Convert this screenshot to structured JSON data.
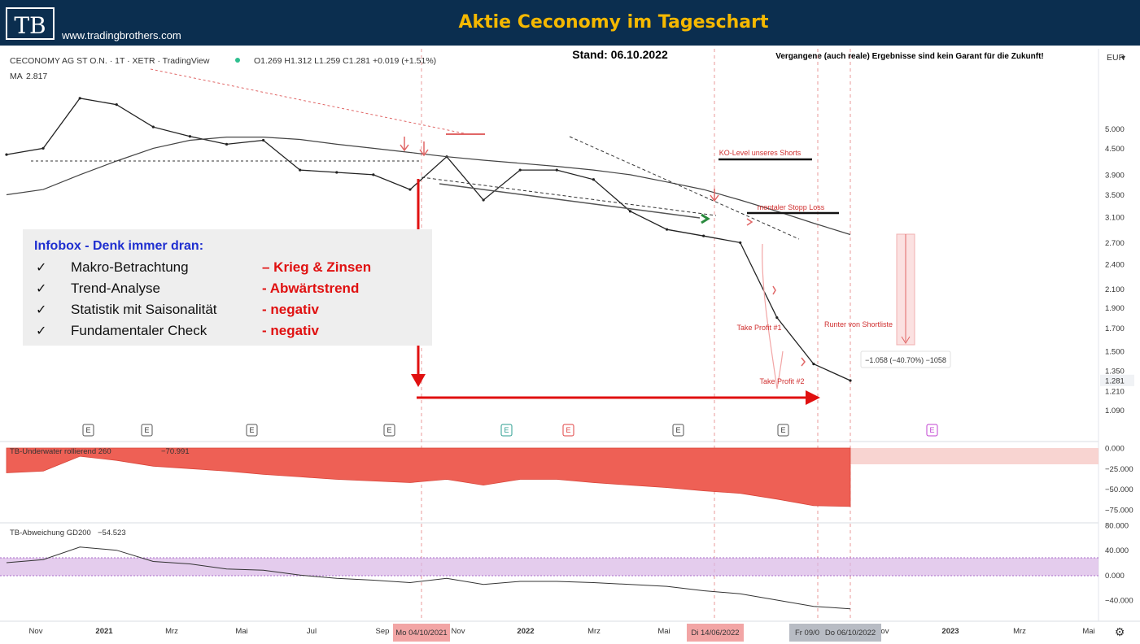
{
  "header": {
    "logo_text": "TB",
    "website": "www.tradingbrothers.com",
    "title": "Aktie Ceconomy im Tageschart",
    "header_bg": "#0b2e4f",
    "title_color": "#f5b800"
  },
  "chart_info": {
    "symbol_line": "CECONOMY AG ST O.N. · 1T · XETR · TradingView",
    "ohlc": "O1.269  H1.312  L1.259  C1.281  +0.019 (+1.51%)",
    "ma_label": "MA",
    "ma_value": "2.817",
    "date_label": "Stand: 06.10.2022",
    "disclaimer": "Vergangene (auch reale) Ergebnisse sind kein Garant für die Zukunft!",
    "currency": "EUR",
    "currency_chevron": "▾"
  },
  "annotations": {
    "ko_level": "KO-Level unseres Shorts",
    "stop_loss": "mentaler Stopp Loss",
    "take_profit_1": "Take Profit #1",
    "take_profit_2": "Take Profit #2",
    "runter": "Runter von Shortliste",
    "measure": "−1.058 (−40.70%) −1058"
  },
  "infobox": {
    "title": "Infobox -  Denk immer dran:",
    "check_glyph": "✓",
    "items": [
      {
        "label": "Makro-Betrachtung",
        "value": "– Krieg & Zinsen"
      },
      {
        "label": "Trend-Analyse",
        "value": "- Abwärtstrend"
      },
      {
        "label": "Statistik mit Saisonalität",
        "value": "- negativ"
      },
      {
        "label": "Fundamentaler Check",
        "value": "- negativ"
      }
    ]
  },
  "event_markers": [
    "E",
    "E",
    "E",
    "E",
    "E",
    "E",
    "E",
    "E",
    "E"
  ],
  "indicators": {
    "underwater_label": "TB-Underwater rollierend 260",
    "underwater_value": "−70.991",
    "gd200_label": "TB-Abweichung GD200",
    "gd200_value": "−54.523"
  },
  "time_axis": {
    "labels": [
      "Nov",
      "2021",
      "Mrz",
      "Mai",
      "Jul",
      "Sep",
      "Nov",
      "2022",
      "Mrz",
      "Mai",
      "Nov",
      "2023",
      "Mrz",
      "Mai"
    ],
    "highlight_1": "Mo 04/10/2021",
    "highlight_2": "Di 14/06/2022",
    "highlight_3": "Fr 09/0",
    "highlight_4": "Do 06/10/2022",
    "gear_icon": "⚙"
  },
  "chart_data": [
    {
      "type": "line",
      "ylabel": "EUR",
      "yscale": "log",
      "ylim": [
        1.05,
        6.0
      ],
      "yticks": [
        "5.000",
        "4.500",
        "3.900",
        "3.500",
        "3.100",
        "2.700",
        "2.400",
        "2.100",
        "1.900",
        "1.700",
        "1.500",
        "1.350",
        "1.281",
        "1.210",
        "1.090"
      ],
      "x": [
        "2020-11",
        "2020-12",
        "2021-01",
        "2021-02",
        "2021-03",
        "2021-04",
        "2021-05",
        "2021-06",
        "2021-07",
        "2021-08",
        "2021-09",
        "2021-10",
        "2021-11",
        "2021-12",
        "2022-01",
        "2022-02",
        "2022-03",
        "2022-04",
        "2022-05",
        "2022-06",
        "2022-07",
        "2022-08",
        "2022-09",
        "2022-10"
      ],
      "series": [
        {
          "values": [
            4.35,
            4.5,
            5.9,
            5.7,
            5.05,
            4.8,
            4.6,
            4.7,
            4.0,
            3.95,
            3.9,
            3.6,
            4.3,
            3.4,
            4.0,
            4.0,
            3.8,
            3.2,
            2.9,
            2.8,
            2.7,
            1.8,
            1.4,
            1.28
          ]
        },
        {
          "name": "MA",
          "values": [
            3.5,
            3.6,
            3.9,
            4.2,
            4.5,
            4.7,
            4.78,
            4.78,
            4.72,
            4.6,
            4.5,
            4.4,
            4.3,
            4.22,
            4.15,
            4.08,
            4.0,
            3.9,
            3.75,
            3.6,
            3.4,
            3.2,
            3.0,
            2.82
          ]
        }
      ]
    },
    {
      "type": "area",
      "title": "TB-Underwater rollierend 260",
      "ylim": [
        -80,
        0
      ],
      "yticks": [
        "0.000",
        "−25.000",
        "−50.000",
        "−75.000"
      ],
      "x": [
        "2020-11",
        "2020-12",
        "2021-01",
        "2021-02",
        "2021-03",
        "2021-04",
        "2021-05",
        "2021-06",
        "2021-07",
        "2021-08",
        "2021-09",
        "2021-10",
        "2021-11",
        "2021-12",
        "2022-01",
        "2022-02",
        "2022-03",
        "2022-04",
        "2022-05",
        "2022-06",
        "2022-07",
        "2022-08",
        "2022-09",
        "2022-10"
      ],
      "values": [
        -30,
        -28,
        -10,
        -15,
        -22,
        -25,
        -28,
        -32,
        -35,
        -38,
        -40,
        -42,
        -38,
        -45,
        -38,
        -38,
        -42,
        -45,
        -48,
        -52,
        -55,
        -62,
        -70,
        -71
      ]
    },
    {
      "type": "line",
      "title": "TB-Abweichung GD200",
      "ylim": [
        -60,
        80
      ],
      "yticks": [
        "80.000",
        "40.000",
        "0.000",
        "−40.000"
      ],
      "x": [
        "2020-11",
        "2020-12",
        "2021-01",
        "2021-02",
        "2021-03",
        "2021-04",
        "2021-05",
        "2021-06",
        "2021-07",
        "2021-08",
        "2021-09",
        "2021-10",
        "2021-11",
        "2021-12",
        "2022-01",
        "2022-02",
        "2022-03",
        "2022-04",
        "2022-05",
        "2022-06",
        "2022-07",
        "2022-08",
        "2022-09",
        "2022-10"
      ],
      "values": [
        20,
        25,
        45,
        40,
        22,
        18,
        10,
        8,
        0,
        -5,
        -8,
        -12,
        -5,
        -15,
        -10,
        -10,
        -12,
        -15,
        -18,
        -25,
        -30,
        -40,
        -50,
        -54
      ]
    }
  ]
}
